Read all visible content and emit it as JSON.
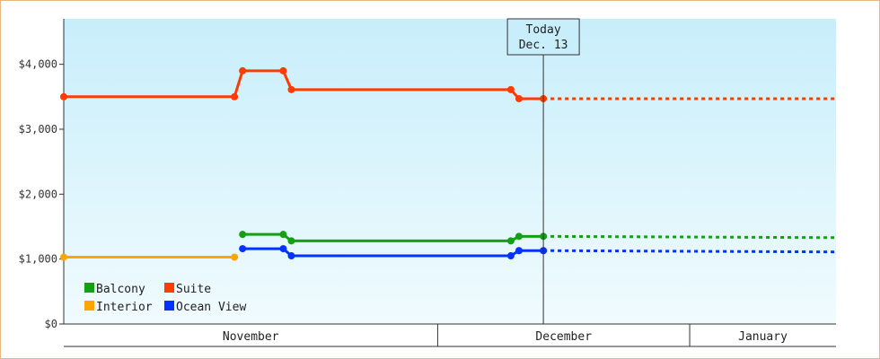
{
  "chart_data": {
    "type": "line",
    "title": "",
    "xlabel": "",
    "ylabel": "",
    "y_ticks": [
      "$0",
      "$1,000",
      "$2,000",
      "$3,000",
      "$4,000"
    ],
    "ylim": [
      0,
      4700
    ],
    "x_start": "2023-10-15",
    "x_end": "2024-01-18",
    "months": [
      {
        "label": "November",
        "start": "2023-10-15",
        "end": "2023-11-30"
      },
      {
        "label": "December",
        "start": "2023-11-30",
        "end": "2023-12-31"
      },
      {
        "label": "January",
        "start": "2023-12-31",
        "end": "2024-01-18"
      }
    ],
    "today": {
      "line1": "Today",
      "line2": "Dec. 13",
      "date": "2023-12-13"
    },
    "series": [
      {
        "name": "Suite",
        "color": "#ff3c00",
        "points": [
          [
            "2023-10-15",
            3500
          ],
          [
            "2023-11-05",
            3500
          ],
          [
            "2023-11-06",
            3900
          ],
          [
            "2023-11-11",
            3900
          ],
          [
            "2023-11-12",
            3610
          ],
          [
            "2023-12-09",
            3610
          ],
          [
            "2023-12-10",
            3470
          ],
          [
            "2023-12-13",
            3470
          ]
        ],
        "forecast": [
          [
            "2023-12-13",
            3470
          ],
          [
            "2024-01-18",
            3470
          ]
        ]
      },
      {
        "name": "Balcony",
        "color": "#13a013",
        "points": [
          [
            "2023-11-06",
            1380
          ],
          [
            "2023-11-11",
            1380
          ],
          [
            "2023-11-12",
            1280
          ],
          [
            "2023-12-09",
            1280
          ],
          [
            "2023-12-10",
            1350
          ],
          [
            "2023-12-13",
            1350
          ]
        ],
        "forecast": [
          [
            "2023-12-13",
            1350
          ],
          [
            "2024-01-18",
            1330
          ]
        ]
      },
      {
        "name": "Ocean View",
        "color": "#0033ff",
        "points": [
          [
            "2023-11-06",
            1160
          ],
          [
            "2023-11-11",
            1160
          ],
          [
            "2023-11-12",
            1050
          ],
          [
            "2023-12-09",
            1050
          ],
          [
            "2023-12-10",
            1130
          ],
          [
            "2023-12-13",
            1130
          ]
        ],
        "forecast": [
          [
            "2023-12-13",
            1130
          ],
          [
            "2024-01-18",
            1110
          ]
        ]
      },
      {
        "name": "Interior",
        "color": "#ffa500",
        "points": [
          [
            "2023-10-15",
            1030
          ],
          [
            "2023-11-05",
            1030
          ]
        ],
        "forecast": []
      }
    ],
    "legend": [
      {
        "name": "Balcony",
        "color": "#13a013"
      },
      {
        "name": "Suite",
        "color": "#ff3c00"
      },
      {
        "name": "Interior",
        "color": "#ffa500"
      },
      {
        "name": "Ocean View",
        "color": "#0033ff"
      }
    ],
    "legend_position": "bottom-left",
    "grid": false
  }
}
